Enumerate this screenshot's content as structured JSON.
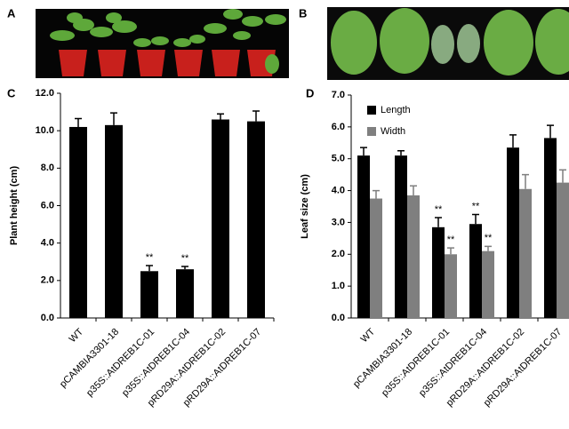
{
  "panels": [
    "A",
    "B",
    "C",
    "D"
  ],
  "chart_data": [
    {
      "type": "bar",
      "y_label": "Plant height (cm)",
      "categories": [
        "WT",
        "pCAMBIA3301-18",
        "p35S::AtDREB1C-01",
        "p35S::AtDREB1C-04",
        "pRD29A::AtDREB1C-02",
        "pRD29A::AtDREB1C-07"
      ],
      "series": [
        {
          "color": "#000000",
          "values": [
            10.2,
            10.3,
            2.5,
            2.6,
            10.6,
            10.5
          ],
          "errors": [
            0.45,
            0.65,
            0.3,
            0.15,
            0.3,
            0.55
          ],
          "annotations": [
            null,
            null,
            "**",
            "**",
            null,
            null
          ]
        }
      ],
      "ylim": [
        0,
        12
      ],
      "yticks": [
        {
          "value": 0,
          "label": "0.0"
        },
        {
          "value": 2,
          "label": "2.0"
        },
        {
          "value": 4,
          "label": "4.0"
        },
        {
          "value": 6,
          "label": "6.0"
        },
        {
          "value": 8,
          "label": "8.0"
        },
        {
          "value": 10,
          "label": "10.0"
        },
        {
          "value": 12,
          "label": "12.0"
        }
      ]
    },
    {
      "type": "bar",
      "y_label": "Leaf size (cm)",
      "legend": "top-left",
      "categories": [
        "WT",
        "pCAMBIA3301-18",
        "p35S::AtDREB1C-01",
        "p35S::AtDREB1C-04",
        "pRD29A::AtDREB1C-02",
        "pRD29A::AtDREB1C-07"
      ],
      "series": [
        {
          "name": "Length",
          "color": "#000000",
          "values": [
            5.1,
            5.1,
            2.85,
            2.95,
            5.35,
            5.65
          ],
          "errors": [
            0.25,
            0.15,
            0.3,
            0.3,
            0.4,
            0.4
          ],
          "annotations": [
            null,
            null,
            "**",
            "**",
            null,
            null
          ]
        },
        {
          "name": "Width",
          "color": "#7f7f7f",
          "values": [
            3.75,
            3.85,
            2.0,
            2.1,
            4.05,
            4.25
          ],
          "errors": [
            0.25,
            0.3,
            0.2,
            0.15,
            0.45,
            0.4
          ],
          "annotations": [
            null,
            null,
            "**",
            "**",
            null,
            null
          ]
        }
      ],
      "ylim": [
        0,
        7
      ],
      "yticks": [
        {
          "value": 0,
          "label": "0.0"
        },
        {
          "value": 1,
          "label": "1.0"
        },
        {
          "value": 2,
          "label": "2.0"
        },
        {
          "value": 3,
          "label": "3.0"
        },
        {
          "value": 4,
          "label": "4.0"
        },
        {
          "value": 5,
          "label": "5.0"
        },
        {
          "value": 6,
          "label": "6.0"
        },
        {
          "value": 7,
          "label": "7.0"
        }
      ]
    }
  ]
}
